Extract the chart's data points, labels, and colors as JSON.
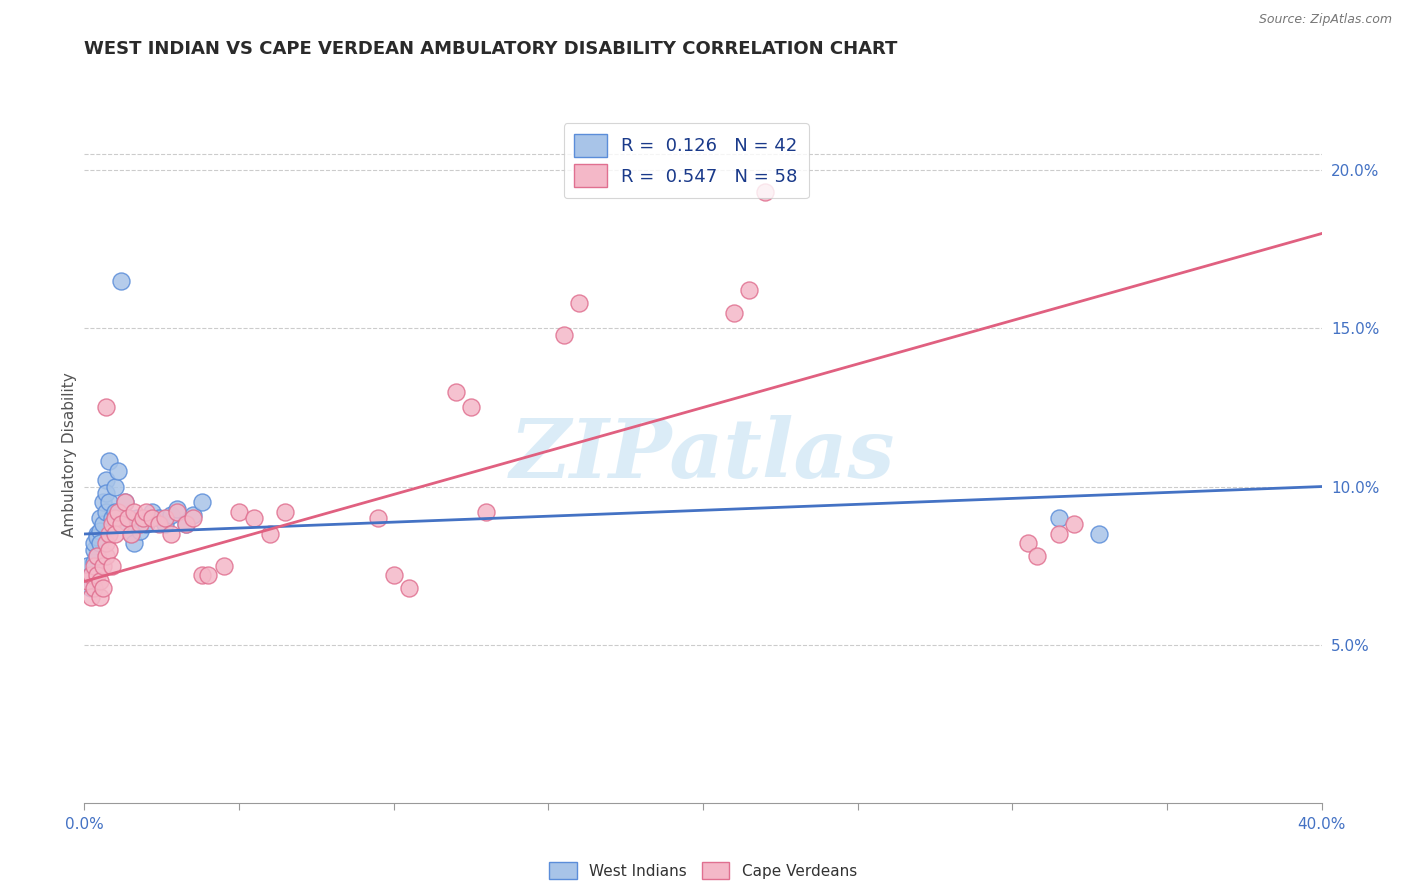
{
  "title": "WEST INDIAN VS CAPE VERDEAN AMBULATORY DISABILITY CORRELATION CHART",
  "source": "Source: ZipAtlas.com",
  "ylabel": "Ambulatory Disability",
  "xlim": [
    0.0,
    0.4
  ],
  "ylim": [
    0.0,
    0.22
  ],
  "r1": 0.126,
  "n1": 42,
  "r2": 0.547,
  "n2": 58,
  "color_west_indian_fill": "#a8c4e8",
  "color_west_indian_edge": "#5b8dd9",
  "color_cape_verdean_fill": "#f4b8c8",
  "color_cape_verdean_edge": "#e07090",
  "color_line_west_indian": "#4472c4",
  "color_line_cape_verdean": "#e06080",
  "color_right_axis": "#4472c4",
  "color_grid": "#cccccc",
  "color_title": "#333333",
  "color_source": "#777777",
  "watermark_text": "ZIPatlas",
  "watermark_color": "#cce5f5",
  "background_color": "#ffffff",
  "west_indian_x": [
    0.001,
    0.002,
    0.002,
    0.003,
    0.003,
    0.003,
    0.004,
    0.004,
    0.004,
    0.005,
    0.005,
    0.005,
    0.006,
    0.006,
    0.007,
    0.007,
    0.007,
    0.008,
    0.008,
    0.009,
    0.01,
    0.01,
    0.011,
    0.012,
    0.013,
    0.014,
    0.015,
    0.016,
    0.017,
    0.018,
    0.02,
    0.022,
    0.024,
    0.026,
    0.028,
    0.03,
    0.033,
    0.035,
    0.038,
    0.012,
    0.315,
    0.328
  ],
  "west_indian_y": [
    0.075,
    0.072,
    0.068,
    0.08,
    0.076,
    0.082,
    0.085,
    0.078,
    0.084,
    0.09,
    0.086,
    0.082,
    0.095,
    0.088,
    0.102,
    0.098,
    0.092,
    0.108,
    0.095,
    0.09,
    0.1,
    0.092,
    0.105,
    0.088,
    0.095,
    0.09,
    0.085,
    0.082,
    0.09,
    0.086,
    0.088,
    0.092,
    0.09,
    0.088,
    0.091,
    0.093,
    0.088,
    0.091,
    0.095,
    0.165,
    0.09,
    0.085
  ],
  "cape_verdean_x": [
    0.001,
    0.002,
    0.002,
    0.003,
    0.003,
    0.004,
    0.004,
    0.005,
    0.005,
    0.006,
    0.006,
    0.007,
    0.007,
    0.007,
    0.008,
    0.008,
    0.009,
    0.009,
    0.01,
    0.01,
    0.011,
    0.012,
    0.013,
    0.014,
    0.015,
    0.016,
    0.018,
    0.019,
    0.02,
    0.022,
    0.024,
    0.026,
    0.028,
    0.03,
    0.033,
    0.035,
    0.038,
    0.04,
    0.045,
    0.05,
    0.055,
    0.06,
    0.065,
    0.095,
    0.1,
    0.105,
    0.12,
    0.125,
    0.13,
    0.155,
    0.16,
    0.21,
    0.215,
    0.22,
    0.305,
    0.308,
    0.315,
    0.32
  ],
  "cape_verdean_y": [
    0.07,
    0.065,
    0.072,
    0.068,
    0.075,
    0.072,
    0.078,
    0.065,
    0.07,
    0.068,
    0.075,
    0.078,
    0.125,
    0.082,
    0.085,
    0.08,
    0.088,
    0.075,
    0.09,
    0.085,
    0.092,
    0.088,
    0.095,
    0.09,
    0.085,
    0.092,
    0.088,
    0.09,
    0.092,
    0.09,
    0.088,
    0.09,
    0.085,
    0.092,
    0.088,
    0.09,
    0.072,
    0.072,
    0.075,
    0.092,
    0.09,
    0.085,
    0.092,
    0.09,
    0.072,
    0.068,
    0.13,
    0.125,
    0.092,
    0.148,
    0.158,
    0.155,
    0.162,
    0.193,
    0.082,
    0.078,
    0.085,
    0.088
  ]
}
